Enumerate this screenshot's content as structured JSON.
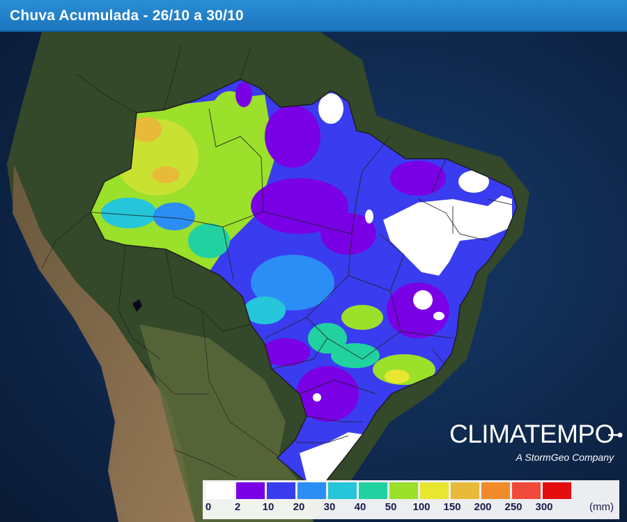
{
  "header": {
    "title": "Chuva Acumulada - 26/10 a 30/10"
  },
  "brand": {
    "name": "CLIMATEMPO",
    "subtitle": "A StormGeo Company"
  },
  "legend": {
    "unit": "(mm)",
    "ticks": [
      "0",
      "2",
      "10",
      "20",
      "30",
      "40",
      "50",
      "100",
      "150",
      "200",
      "250",
      "300"
    ],
    "colors": [
      "#ffffff",
      "#7a00e6",
      "#3a3cf0",
      "#2b8ef5",
      "#25c6d9",
      "#21d2a0",
      "#9be02b",
      "#e9e632",
      "#e8ba3a",
      "#f08a2a",
      "#f04a3a",
      "#e50e0e"
    ]
  },
  "map": {
    "region": "Brasil",
    "palette": {
      "ocean": "#0c2347",
      "land": "#3b4a2a",
      "dry": "#8a6b4a"
    }
  }
}
